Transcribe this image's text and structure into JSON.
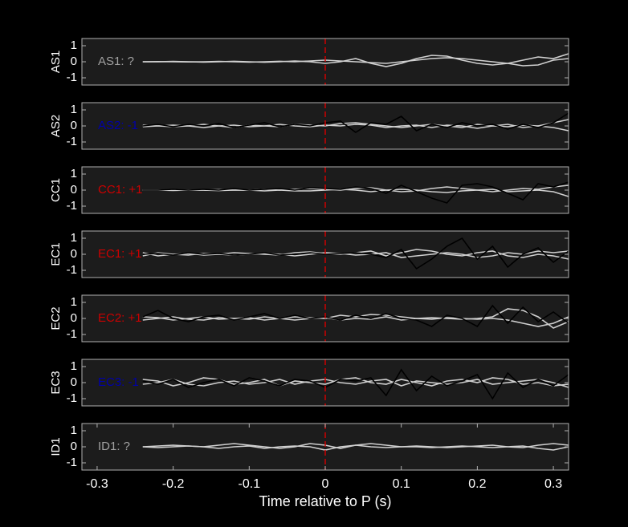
{
  "chart_data": [
    {
      "type": "line",
      "ylabel": "AS1",
      "annotation": {
        "text": "AS1: ?",
        "color": "#a0a0a0"
      },
      "x": [
        -0.32,
        -0.3,
        -0.28,
        -0.26,
        -0.24,
        -0.22,
        -0.2,
        -0.18,
        -0.16,
        -0.14,
        -0.12,
        -0.1,
        -0.08,
        -0.06,
        -0.04,
        -0.02,
        0,
        0.02,
        0.04,
        0.06,
        0.08,
        0.1,
        0.12,
        0.14,
        0.16,
        0.18,
        0.2,
        0.22,
        0.24,
        0.26,
        0.28,
        0.3,
        0.32
      ],
      "series": [
        {
          "color": "#d0d0d0",
          "values": [
            null,
            null,
            null,
            null,
            0,
            0,
            0.02,
            0,
            -0.02,
            0,
            0.03,
            0,
            -0.03,
            0,
            0.05,
            0,
            -0.1,
            0,
            0.2,
            -0.1,
            -0.3,
            -0.1,
            0.2,
            0.4,
            0.35,
            0.1,
            -0.1,
            -0.2,
            -0.1,
            0.1,
            0.3,
            0.2,
            0.5
          ]
        },
        {
          "color": "#d0d0d0",
          "values": [
            null,
            null,
            null,
            null,
            0,
            0.01,
            0,
            -0.01,
            0,
            0.02,
            0,
            -0.02,
            0,
            0.03,
            0,
            0.05,
            0.1,
            0.05,
            0,
            -0.05,
            -0.1,
            0,
            0.1,
            0.2,
            0.25,
            0.2,
            0.1,
            0,
            -0.1,
            -0.25,
            -0.2,
            0.1,
            0.2
          ]
        }
      ],
      "xlim": [
        -0.32,
        0.32
      ],
      "ylim": [
        -1.45,
        1.45
      ],
      "yticks": [
        -1,
        0,
        1
      ],
      "marker_x": 0,
      "marker_color": "#cc0000"
    },
    {
      "type": "line",
      "ylabel": "AS2",
      "annotation": {
        "text": "AS2: -1",
        "color": "#0000aa"
      },
      "x": [
        -0.32,
        -0.3,
        -0.28,
        -0.26,
        -0.24,
        -0.22,
        -0.2,
        -0.18,
        -0.16,
        -0.14,
        -0.12,
        -0.1,
        -0.08,
        -0.06,
        -0.04,
        -0.02,
        0,
        0.02,
        0.04,
        0.06,
        0.08,
        0.1,
        0.12,
        0.14,
        0.16,
        0.18,
        0.2,
        0.22,
        0.24,
        0.26,
        0.28,
        0.3,
        0.32
      ],
      "series": [
        {
          "color": "#d0d0d0",
          "values": [
            null,
            null,
            null,
            null,
            0.05,
            0,
            -0.05,
            0,
            0.1,
            0,
            -0.1,
            0.05,
            0,
            -0.05,
            0.1,
            0.05,
            0,
            0.15,
            0.2,
            0.1,
            0,
            -0.1,
            0,
            0.1,
            0,
            -0.1,
            0.1,
            0,
            -0.05,
            0.05,
            0,
            0.2,
            0.4
          ]
        },
        {
          "color": "#d0d0d0",
          "values": [
            null,
            null,
            null,
            null,
            -0.05,
            0,
            0.05,
            0,
            -0.1,
            0,
            0.05,
            -0.05,
            0,
            0.1,
            0,
            -0.05,
            0.05,
            0,
            0.1,
            0.05,
            -0.1,
            0,
            0.05,
            -0.1,
            0.05,
            0,
            -0.15,
            0,
            0.1,
            -0.1,
            0,
            -0.1,
            -0.3
          ]
        },
        {
          "color": "#000000",
          "values": [
            null,
            null,
            null,
            null,
            0,
            0.1,
            -0.05,
            0.1,
            0,
            0.15,
            -0.1,
            0.05,
            0.2,
            -0.05,
            0.1,
            0,
            0.2,
            0.3,
            -0.4,
            0.2,
            0.1,
            0.6,
            -0.3,
            0.1,
            -0.1,
            0.2,
            0,
            0.1,
            -0.2,
            0.1,
            -0.1,
            0.2,
            0.8
          ]
        }
      ],
      "xlim": [
        -0.32,
        0.32
      ],
      "ylim": [
        -1.45,
        1.45
      ],
      "yticks": [
        -1,
        0,
        1
      ],
      "marker_x": 0,
      "marker_color": "#cc0000"
    },
    {
      "type": "line",
      "ylabel": "CC1",
      "annotation": {
        "text": "CC1: +1",
        "color": "#cc0000"
      },
      "x": [
        -0.32,
        -0.3,
        -0.28,
        -0.26,
        -0.24,
        -0.22,
        -0.2,
        -0.18,
        -0.16,
        -0.14,
        -0.12,
        -0.1,
        -0.08,
        -0.06,
        -0.04,
        -0.02,
        0,
        0.02,
        0.04,
        0.06,
        0.08,
        0.1,
        0.12,
        0.14,
        0.16,
        0.18,
        0.2,
        0.22,
        0.24,
        0.26,
        0.28,
        0.3,
        0.32
      ],
      "series": [
        {
          "color": "#d0d0d0",
          "values": [
            null,
            null,
            null,
            null,
            0,
            0,
            0.02,
            0,
            0,
            0.03,
            0,
            0,
            0.05,
            0,
            0.05,
            0.1,
            0.05,
            0,
            0.1,
            0.15,
            0,
            -0.1,
            -0.05,
            0.1,
            0.2,
            0.1,
            0,
            -0.1,
            0,
            0.1,
            0.05,
            0.2,
            0.3
          ]
        },
        {
          "color": "#d0d0d0",
          "values": [
            null,
            null,
            null,
            null,
            0,
            0,
            -0.02,
            0,
            0,
            -0.03,
            0,
            0,
            -0.05,
            0,
            -0.05,
            -0.05,
            0,
            0.05,
            0,
            -0.1,
            0,
            0.05,
            0,
            -0.1,
            -0.15,
            -0.05,
            0,
            0.05,
            -0.1,
            -0.05,
            0,
            -0.1,
            -0.4
          ]
        },
        {
          "color": "#000000",
          "values": [
            null,
            null,
            null,
            null,
            0,
            0,
            0.05,
            0,
            0.05,
            0,
            0.1,
            0,
            0.05,
            0.1,
            0,
            0.15,
            0.1,
            0.05,
            0.2,
            0.1,
            -0.2,
            0.3,
            -0.1,
            -0.5,
            -0.8,
            0.3,
            0.4,
            0.2,
            -0.2,
            -0.6,
            0.4,
            0.2,
            0.5
          ]
        }
      ],
      "xlim": [
        -0.32,
        0.32
      ],
      "ylim": [
        -1.45,
        1.45
      ],
      "yticks": [
        -1,
        0,
        1
      ],
      "marker_x": 0,
      "marker_color": "#cc0000"
    },
    {
      "type": "line",
      "ylabel": "EC1",
      "annotation": {
        "text": "EC1: +1",
        "color": "#cc0000"
      },
      "x": [
        -0.32,
        -0.3,
        -0.28,
        -0.26,
        -0.24,
        -0.22,
        -0.2,
        -0.18,
        -0.16,
        -0.14,
        -0.12,
        -0.1,
        -0.08,
        -0.06,
        -0.04,
        -0.02,
        0,
        0.02,
        0.04,
        0.06,
        0.08,
        0.1,
        0.12,
        0.14,
        0.16,
        0.18,
        0.2,
        0.22,
        0.24,
        0.26,
        0.28,
        0.3,
        0.32
      ],
      "series": [
        {
          "color": "#d0d0d0",
          "values": [
            null,
            null,
            null,
            null,
            0.1,
            -0.1,
            0,
            0.05,
            -0.05,
            0,
            0.1,
            0.05,
            0,
            -0.05,
            0.1,
            0.15,
            0.05,
            0,
            0.1,
            0.2,
            -0.1,
            0.1,
            0.3,
            0.2,
            0,
            -0.1,
            0.1,
            0.2,
            -0.1,
            -0.2,
            0,
            -0.1,
            -0.3
          ]
        },
        {
          "color": "#d0d0d0",
          "values": [
            null,
            null,
            null,
            null,
            -0.1,
            0.1,
            0,
            -0.05,
            0.05,
            0,
            -0.05,
            0,
            0.05,
            0,
            -0.1,
            0,
            0.1,
            0.05,
            -0.05,
            0,
            0.1,
            -0.2,
            -0.1,
            0,
            0.1,
            0,
            -0.2,
            -0.1,
            0.1,
            0,
            0.2,
            0.1,
            0.2
          ]
        },
        {
          "color": "#000000",
          "values": [
            null,
            null,
            null,
            null,
            0,
            0.05,
            -0.05,
            0.1,
            0,
            0.05,
            -0.05,
            0,
            0.1,
            -0.05,
            0,
            0.1,
            0,
            0.05,
            0.1,
            0,
            -0.2,
            0.3,
            -0.9,
            -0.3,
            0.5,
            1,
            -0.3,
            0.5,
            -0.8,
            0,
            0.4,
            -0.5,
            0.2
          ]
        }
      ],
      "xlim": [
        -0.32,
        0.32
      ],
      "ylim": [
        -1.45,
        1.45
      ],
      "yticks": [
        -1,
        0,
        1
      ],
      "marker_x": 0,
      "marker_color": "#cc0000"
    },
    {
      "type": "line",
      "ylabel": "EC2",
      "annotation": {
        "text": "EC2: +1",
        "color": "#cc0000"
      },
      "x": [
        -0.32,
        -0.3,
        -0.28,
        -0.26,
        -0.24,
        -0.22,
        -0.2,
        -0.18,
        -0.16,
        -0.14,
        -0.12,
        -0.1,
        -0.08,
        -0.06,
        -0.04,
        -0.02,
        0,
        0.02,
        0.04,
        0.06,
        0.08,
        0.1,
        0.12,
        0.14,
        0.16,
        0.18,
        0.2,
        0.22,
        0.24,
        0.26,
        0.28,
        0.3,
        0.32
      ],
      "series": [
        {
          "color": "#d0d0d0",
          "values": [
            null,
            null,
            null,
            null,
            0.1,
            0.05,
            -0.1,
            0,
            0.1,
            -0.05,
            0,
            0.05,
            -0.1,
            0,
            0.1,
            0.05,
            0,
            0.2,
            0.1,
            0.25,
            0.2,
            0.1,
            0,
            0.05,
            0,
            -0.05,
            0,
            0.1,
            0.6,
            0.5,
            0.1,
            -0.6,
            -0.2
          ]
        },
        {
          "color": "#d0d0d0",
          "values": [
            null,
            null,
            null,
            null,
            -0.1,
            0,
            0.1,
            -0.05,
            -0.1,
            0.05,
            0,
            -0.05,
            0.1,
            0,
            -0.1,
            0,
            0.05,
            -0.1,
            0,
            -0.05,
            0.1,
            -0.1,
            0,
            -0.05,
            0.05,
            0,
            -0.05,
            0,
            -0.1,
            -0.3,
            -0.5,
            -0.3,
            0.1
          ]
        },
        {
          "color": "#000000",
          "values": [
            null,
            null,
            null,
            null,
            0.1,
            0.5,
            0,
            -0.2,
            0.1,
            0.2,
            -0.1,
            0.1,
            0.3,
            0,
            0.2,
            0,
            0.1,
            -0.1,
            0.2,
            0,
            0.3,
            0,
            -0.1,
            -0.5,
            0.2,
            0,
            -0.5,
            0.8,
            -0.3,
            0.7,
            -0.2,
            0.4,
            -0.3
          ]
        }
      ],
      "xlim": [
        -0.32,
        0.32
      ],
      "ylim": [
        -1.45,
        1.45
      ],
      "yticks": [
        -1,
        0,
        1
      ],
      "marker_x": 0,
      "marker_color": "#cc0000"
    },
    {
      "type": "line",
      "ylabel": "EC3",
      "annotation": {
        "text": "EC3: -1",
        "color": "#0000aa"
      },
      "x": [
        -0.32,
        -0.3,
        -0.28,
        -0.26,
        -0.24,
        -0.22,
        -0.2,
        -0.18,
        -0.16,
        -0.14,
        -0.12,
        -0.1,
        -0.08,
        -0.06,
        -0.04,
        -0.02,
        0,
        0.02,
        0.04,
        0.06,
        0.08,
        0.1,
        0.12,
        0.14,
        0.16,
        0.18,
        0.2,
        0.22,
        0.24,
        0.26,
        0.28,
        0.3,
        0.32
      ],
      "series": [
        {
          "color": "#d0d0d0",
          "values": [
            null,
            null,
            null,
            null,
            0.2,
            0.1,
            -0.2,
            0,
            0.3,
            0.2,
            -0.1,
            0,
            0.2,
            -0.2,
            0.1,
            0,
            -0.1,
            0.2,
            0.3,
            0,
            -0.1,
            0.2,
            0,
            -0.2,
            0.1,
            0.2,
            0,
            0.3,
            0.2,
            -0.1,
            0,
            -0.2,
            -0.1
          ]
        },
        {
          "color": "#d0d0d0",
          "values": [
            null,
            null,
            null,
            null,
            -0.1,
            0,
            0.2,
            -0.1,
            -0.2,
            0,
            0.1,
            -0.1,
            0,
            0.2,
            -0.1,
            0.1,
            0.2,
            0,
            -0.1,
            0.1,
            0.2,
            -0.2,
            0.1,
            0,
            -0.1,
            0,
            0.2,
            -0.1,
            0,
            0.1,
            0.2,
            0,
            -0.3
          ]
        },
        {
          "color": "#000000",
          "values": [
            null,
            null,
            null,
            null,
            0.1,
            -0.1,
            0.2,
            -0.3,
            0,
            0.2,
            -0.2,
            0.3,
            0.1,
            -0.2,
            0.2,
            0.1,
            -0.3,
            0.2,
            0.1,
            0.3,
            -0.8,
            0.8,
            -0.5,
            0.4,
            -0.2,
            0.1,
            0.5,
            -1,
            0.6,
            -0.3,
            0.2,
            -0.2,
            0.5
          ]
        }
      ],
      "xlim": [
        -0.32,
        0.32
      ],
      "ylim": [
        -1.45,
        1.45
      ],
      "yticks": [
        -1,
        0,
        1
      ],
      "marker_x": 0,
      "marker_color": "#cc0000"
    },
    {
      "type": "line",
      "ylabel": "ID1",
      "annotation": {
        "text": "ID1: ?",
        "color": "#a0a0a0"
      },
      "x": [
        -0.32,
        -0.3,
        -0.28,
        -0.26,
        -0.24,
        -0.22,
        -0.2,
        -0.18,
        -0.16,
        -0.14,
        -0.12,
        -0.1,
        -0.08,
        -0.06,
        -0.04,
        -0.02,
        0,
        0.02,
        0.04,
        0.06,
        0.08,
        0.1,
        0.12,
        0.14,
        0.16,
        0.18,
        0.2,
        0.22,
        0.24,
        0.26,
        0.28,
        0.3,
        0.32
      ],
      "series": [
        {
          "color": "#d0d0d0",
          "values": [
            null,
            null,
            null,
            null,
            0,
            0.05,
            0.1,
            0.05,
            0,
            0.1,
            0.2,
            0.1,
            0,
            -0.1,
            0,
            0.2,
            0.1,
            -0.1,
            0.1,
            0.2,
            0.1,
            0,
            0.05,
            0,
            -0.05,
            0,
            0.05,
            0.1,
            0,
            -0.05,
            0.1,
            0.2,
            0.1
          ]
        },
        {
          "color": "#d0d0d0",
          "values": [
            null,
            null,
            null,
            null,
            0,
            -0.05,
            0,
            0.05,
            0,
            -0.1,
            0,
            0.05,
            -0.1,
            0,
            0.05,
            0,
            -0.2,
            0,
            0.1,
            0,
            -0.05,
            0,
            0,
            -0.05,
            0,
            0.05,
            0,
            -0.05,
            0,
            0.05,
            -0.1,
            -0.2,
            0
          ]
        }
      ],
      "xlim": [
        -0.32,
        0.32
      ],
      "ylim": [
        -1.45,
        1.45
      ],
      "yticks": [
        -1,
        0,
        1
      ],
      "marker_x": 0,
      "marker_color": "#cc0000",
      "xticks": [
        -0.3,
        -0.2,
        -0.1,
        0,
        0.1,
        0.2,
        0.3
      ],
      "xlabel": "Time relative to P (s)"
    }
  ]
}
